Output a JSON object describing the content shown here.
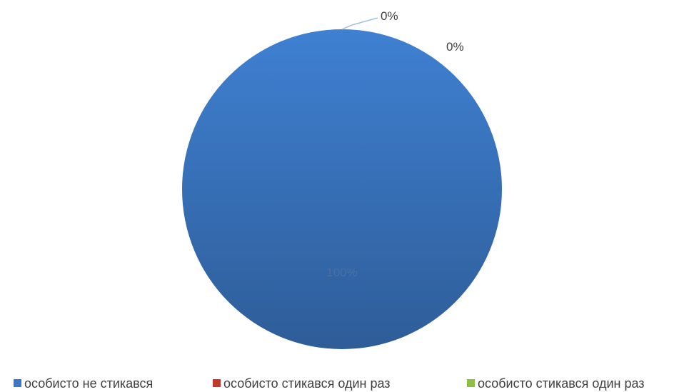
{
  "chart_data": {
    "type": "pie",
    "title": "",
    "categories": [
      "особисто не стикався",
      "особисто стикався один раз",
      "особисто стикався один раз"
    ],
    "values": [
      100,
      0,
      0
    ],
    "data_labels": [
      "100%",
      "0%",
      "0%"
    ],
    "colors": [
      "#3c78c8",
      "#c0392b",
      "#8dbf42"
    ],
    "legend_position": "bottom"
  }
}
